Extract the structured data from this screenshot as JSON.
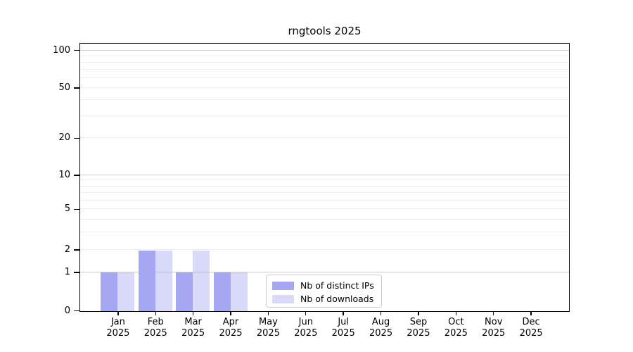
{
  "chart_data": {
    "type": "bar",
    "title": "rngtools 2025",
    "categories": [
      "Jan",
      "Feb",
      "Mar",
      "Apr",
      "May",
      "Jun",
      "Jul",
      "Aug",
      "Sep",
      "Oct",
      "Nov",
      "Dec"
    ],
    "x_tick_year": "2025",
    "series": [
      {
        "name": "Nb of distinct IPs",
        "color": "#a5a7f3",
        "values": [
          1,
          2,
          1,
          1,
          0,
          0,
          0,
          0,
          0,
          0,
          0,
          0
        ]
      },
      {
        "name": "Nb of downloads",
        "color": "rgba(165,167,243,0.42)",
        "values": [
          1,
          2,
          2,
          1,
          0,
          0,
          0,
          0,
          0,
          0,
          0,
          0
        ]
      }
    ],
    "xlabel": "",
    "ylabel": "",
    "ylim": [
      0,
      112
    ],
    "y_ticks": [
      0,
      1,
      2,
      5,
      10,
      20,
      50,
      100
    ],
    "y_major_gridlines": [
      1,
      10,
      100
    ],
    "y_minor_gridlines": [
      2,
      3,
      4,
      5,
      6,
      7,
      8,
      9,
      20,
      30,
      40,
      50,
      60,
      70,
      80,
      90
    ],
    "y_scale": "log above 1, linear segment from 0 to 1",
    "y_tick_fractions": {
      "0": 0,
      "1": 0.144,
      "2": 0.228,
      "5": 0.38,
      "10": 0.508,
      "20": 0.647,
      "50": 0.835,
      "100": 0.976
    },
    "grid": true,
    "legend_position": "inside-bottom-center",
    "colors": {
      "bar_distinct_ips": "#a5a7f3",
      "bar_downloads": "rgba(165,167,243,0.42)",
      "major_grid": "#cccccc",
      "minor_grid": "#eeeeee",
      "axis": "#000000",
      "text": "#000000",
      "legend_border": "#cccccc",
      "background": "#ffffff"
    }
  }
}
